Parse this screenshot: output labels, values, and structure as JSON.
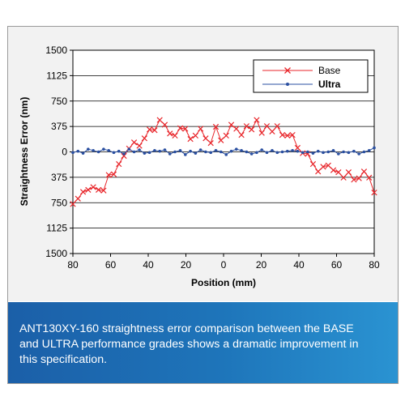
{
  "chart_data": {
    "type": "line",
    "xlabel": "Position (mm)",
    "ylabel": "Straightness Error (nm)",
    "x_tick_labels": [
      "80",
      "60",
      "40",
      "20",
      "0",
      "20",
      "40",
      "60",
      "80"
    ],
    "y_tick_labels": [
      "1500",
      "1125",
      "750",
      "375",
      "0",
      "375",
      "750",
      "1125",
      "1500"
    ],
    "xlim": [
      -80,
      80
    ],
    "ylim": [
      -1500,
      1500
    ],
    "grid": "horizontal",
    "legend_position": "top-right",
    "series": [
      {
        "name": "Base",
        "color": "#e8262b",
        "marker": "x",
        "x": [
          -80,
          -77.3,
          -74.6,
          -71.9,
          -69.2,
          -66.4,
          -63.7,
          -61,
          -58.3,
          -55.6,
          -52.9,
          -50.2,
          -47.5,
          -44.7,
          -42,
          -39.3,
          -36.6,
          -33.9,
          -31.2,
          -28.5,
          -25.8,
          -23,
          -20.3,
          -17.6,
          -14.9,
          -12.2,
          -9.5,
          -6.8,
          -4.1,
          -1.4,
          1.4,
          4.1,
          6.8,
          9.5,
          12.2,
          14.9,
          17.6,
          20.3,
          23,
          25.8,
          28.5,
          31.2,
          33.9,
          36.6,
          39.3,
          42,
          44.7,
          47.5,
          50.2,
          52.9,
          55.6,
          58.3,
          61,
          63.7,
          66.4,
          69.2,
          71.9,
          74.6,
          77.3,
          80
        ],
        "values": [
          -770,
          -690,
          -590,
          -560,
          -520,
          -560,
          -570,
          -340,
          -330,
          -180,
          -60,
          50,
          140,
          90,
          200,
          330,
          320,
          470,
          400,
          270,
          240,
          350,
          340,
          190,
          240,
          340,
          200,
          130,
          370,
          170,
          240,
          400,
          340,
          250,
          380,
          330,
          470,
          280,
          380,
          300,
          380,
          250,
          240,
          250,
          60,
          -20,
          -30,
          -180,
          -290,
          -220,
          -200,
          -270,
          -300,
          -380,
          -300,
          -410,
          -390,
          -290,
          -380,
          -600
        ]
      },
      {
        "name": "Ultra",
        "color": "#2a4fa0",
        "marker": "dot",
        "x": [
          -80,
          -77.3,
          -74.6,
          -71.9,
          -69.2,
          -66.4,
          -63.7,
          -61,
          -58.3,
          -55.6,
          -52.9,
          -50.2,
          -47.5,
          -44.7,
          -42,
          -39.3,
          -36.6,
          -33.9,
          -31.2,
          -28.5,
          -25.8,
          -23,
          -20.3,
          -17.6,
          -14.9,
          -12.2,
          -9.5,
          -6.8,
          -4.1,
          -1.4,
          1.4,
          4.1,
          6.8,
          9.5,
          12.2,
          14.9,
          17.6,
          20.3,
          23,
          25.8,
          28.5,
          31.2,
          33.9,
          36.6,
          39.3,
          42,
          44.7,
          47.5,
          50.2,
          52.9,
          55.6,
          58.3,
          61,
          63.7,
          66.4,
          69.2,
          71.9,
          74.6,
          77.3,
          80
        ],
        "values": [
          -10,
          10,
          -20,
          40,
          20,
          0,
          40,
          20,
          -10,
          10,
          -30,
          40,
          0,
          30,
          -20,
          -10,
          20,
          10,
          30,
          -30,
          0,
          20,
          -40,
          10,
          -20,
          30,
          0,
          -10,
          20,
          0,
          -40,
          10,
          40,
          20,
          0,
          -30,
          -10,
          30,
          -10,
          20,
          -10,
          0,
          10,
          20,
          10,
          -10,
          0,
          -20,
          10,
          -10,
          0,
          20,
          -30,
          0,
          -10,
          10,
          -30,
          0,
          20,
          60
        ]
      }
    ]
  },
  "caption": {
    "line1": "ANT130XY-160 straightness error comparison between the BASE",
    "line2": "and ULTRA performance grades shows a dramatic improvement in",
    "line3": "this specification."
  }
}
